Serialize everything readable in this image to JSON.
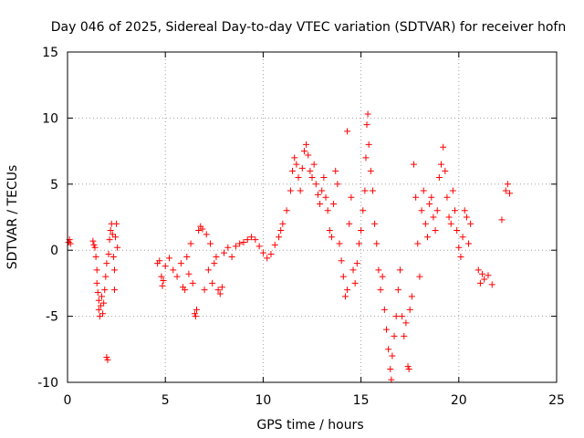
{
  "chart_data": {
    "type": "scatter",
    "title": "Day 046 of 2025, Sidereal Day-to-day VTEC variation (SDTVAR) for receiver hofn",
    "xlabel": "GPS time / hours",
    "ylabel": "SDTVAR / TECUs",
    "xlim": [
      0,
      25
    ],
    "ylim": [
      -10,
      15
    ],
    "xticks": [
      0,
      5,
      10,
      15,
      20,
      25
    ],
    "yticks": [
      -10,
      -5,
      0,
      5,
      10,
      15
    ],
    "grid": true,
    "marker": "+",
    "color": "#ff0000",
    "series": [
      {
        "name": "SDTVAR",
        "points": [
          [
            0.05,
            0.6
          ],
          [
            0.1,
            0.8
          ],
          [
            0.15,
            0.5
          ],
          [
            1.3,
            0.7
          ],
          [
            1.35,
            0.4
          ],
          [
            1.4,
            0.2
          ],
          [
            1.45,
            -0.5
          ],
          [
            1.5,
            -1.5
          ],
          [
            1.5,
            -2.5
          ],
          [
            1.55,
            -3.2
          ],
          [
            1.6,
            -3.8
          ],
          [
            1.6,
            -4.5
          ],
          [
            1.65,
            -5.0
          ],
          [
            1.7,
            -4.2
          ],
          [
            1.75,
            -3.5
          ],
          [
            1.8,
            -4.8
          ],
          [
            1.85,
            -4.0
          ],
          [
            1.9,
            -3.0
          ],
          [
            1.95,
            -2.0
          ],
          [
            2.0,
            -1.0
          ],
          [
            2.0,
            -8.1
          ],
          [
            2.05,
            -8.3
          ],
          [
            2.1,
            -0.3
          ],
          [
            2.15,
            0.8
          ],
          [
            2.2,
            1.5
          ],
          [
            2.25,
            2.0
          ],
          [
            2.3,
            1.2
          ],
          [
            2.35,
            -0.5
          ],
          [
            2.4,
            -1.5
          ],
          [
            2.4,
            -3.0
          ],
          [
            2.45,
            1.0
          ],
          [
            2.5,
            2.0
          ],
          [
            2.55,
            0.2
          ],
          [
            4.6,
            -1.0
          ],
          [
            4.7,
            -0.8
          ],
          [
            4.8,
            -2.0
          ],
          [
            4.85,
            -2.7
          ],
          [
            4.9,
            -2.3
          ],
          [
            5.0,
            -1.2
          ],
          [
            5.2,
            -0.6
          ],
          [
            5.4,
            -1.5
          ],
          [
            5.6,
            -2.0
          ],
          [
            5.8,
            -1.0
          ],
          [
            5.9,
            -2.8
          ],
          [
            6.0,
            -3.0
          ],
          [
            6.1,
            -0.5
          ],
          [
            6.2,
            -1.8
          ],
          [
            6.3,
            0.5
          ],
          [
            6.4,
            -2.5
          ],
          [
            6.5,
            -4.8
          ],
          [
            6.55,
            -5.0
          ],
          [
            6.6,
            -4.5
          ],
          [
            6.7,
            1.5
          ],
          [
            6.8,
            1.8
          ],
          [
            6.9,
            1.6
          ],
          [
            7.0,
            -3.0
          ],
          [
            7.1,
            1.2
          ],
          [
            7.2,
            -1.5
          ],
          [
            7.3,
            0.5
          ],
          [
            7.4,
            -2.5
          ],
          [
            7.5,
            -1.0
          ],
          [
            7.6,
            -0.5
          ],
          [
            7.7,
            -3.0
          ],
          [
            7.8,
            -3.3
          ],
          [
            7.9,
            -2.8
          ],
          [
            8.0,
            -0.2
          ],
          [
            8.2,
            0.2
          ],
          [
            8.4,
            -0.5
          ],
          [
            8.6,
            0.3
          ],
          [
            8.8,
            0.5
          ],
          [
            9.0,
            0.6
          ],
          [
            9.2,
            0.8
          ],
          [
            9.4,
            1.0
          ],
          [
            9.6,
            0.8
          ],
          [
            9.8,
            0.3
          ],
          [
            10.0,
            -0.2
          ],
          [
            10.2,
            -0.6
          ],
          [
            10.4,
            -0.3
          ],
          [
            10.6,
            0.4
          ],
          [
            10.8,
            1.0
          ],
          [
            10.9,
            1.5
          ],
          [
            11.0,
            2.0
          ],
          [
            11.2,
            3.0
          ],
          [
            11.4,
            4.5
          ],
          [
            11.5,
            6.0
          ],
          [
            11.6,
            7.0
          ],
          [
            11.7,
            6.5
          ],
          [
            11.8,
            5.5
          ],
          [
            11.9,
            4.5
          ],
          [
            12.0,
            6.2
          ],
          [
            12.1,
            7.5
          ],
          [
            12.2,
            8.0
          ],
          [
            12.3,
            7.2
          ],
          [
            12.4,
            6.0
          ],
          [
            12.5,
            5.5
          ],
          [
            12.6,
            6.5
          ],
          [
            12.7,
            5.0
          ],
          [
            12.8,
            4.2
          ],
          [
            12.9,
            3.5
          ],
          [
            13.0,
            4.5
          ],
          [
            13.1,
            5.5
          ],
          [
            13.2,
            4.0
          ],
          [
            13.3,
            3.0
          ],
          [
            13.4,
            1.5
          ],
          [
            13.5,
            1.0
          ],
          [
            13.6,
            3.5
          ],
          [
            13.7,
            6.0
          ],
          [
            13.8,
            5.0
          ],
          [
            13.9,
            0.5
          ],
          [
            14.0,
            -0.8
          ],
          [
            14.1,
            -2.0
          ],
          [
            14.2,
            -3.5
          ],
          [
            14.3,
            -3.0
          ],
          [
            14.3,
            9.0
          ],
          [
            14.4,
            2.0
          ],
          [
            14.5,
            4.0
          ],
          [
            14.6,
            -1.5
          ],
          [
            14.7,
            -2.5
          ],
          [
            14.8,
            -1.0
          ],
          [
            14.9,
            0.5
          ],
          [
            15.0,
            1.5
          ],
          [
            15.1,
            3.0
          ],
          [
            15.2,
            4.5
          ],
          [
            15.25,
            7.0
          ],
          [
            15.3,
            9.5
          ],
          [
            15.35,
            10.3
          ],
          [
            15.4,
            8.0
          ],
          [
            15.5,
            6.0
          ],
          [
            15.6,
            4.5
          ],
          [
            15.7,
            2.0
          ],
          [
            15.8,
            0.5
          ],
          [
            15.9,
            -1.5
          ],
          [
            16.0,
            -3.0
          ],
          [
            16.1,
            -2.0
          ],
          [
            16.2,
            -4.5
          ],
          [
            16.3,
            -6.0
          ],
          [
            16.4,
            -7.5
          ],
          [
            16.5,
            -9.0
          ],
          [
            16.55,
            -9.8
          ],
          [
            16.6,
            -8.0
          ],
          [
            16.7,
            -6.5
          ],
          [
            16.8,
            -5.0
          ],
          [
            16.9,
            -3.0
          ],
          [
            17.0,
            -1.5
          ],
          [
            17.1,
            -5.0
          ],
          [
            17.2,
            -6.5
          ],
          [
            17.3,
            -5.5
          ],
          [
            17.4,
            -8.8
          ],
          [
            17.45,
            -9.0
          ],
          [
            17.5,
            -4.5
          ],
          [
            17.6,
            -3.5
          ],
          [
            17.7,
            6.5
          ],
          [
            17.8,
            4.0
          ],
          [
            17.9,
            0.5
          ],
          [
            18.0,
            -2.0
          ],
          [
            18.1,
            3.0
          ],
          [
            18.2,
            4.5
          ],
          [
            18.3,
            2.0
          ],
          [
            18.4,
            1.0
          ],
          [
            18.5,
            3.5
          ],
          [
            18.6,
            4.0
          ],
          [
            18.7,
            2.5
          ],
          [
            18.8,
            1.5
          ],
          [
            18.9,
            3.0
          ],
          [
            19.0,
            5.5
          ],
          [
            19.1,
            6.5
          ],
          [
            19.2,
            7.8
          ],
          [
            19.3,
            6.0
          ],
          [
            19.4,
            4.0
          ],
          [
            19.5,
            2.5
          ],
          [
            19.6,
            2.0
          ],
          [
            19.7,
            4.5
          ],
          [
            19.8,
            3.0
          ],
          [
            19.9,
            1.5
          ],
          [
            20.0,
            0.2
          ],
          [
            20.1,
            -0.5
          ],
          [
            20.2,
            1.0
          ],
          [
            20.3,
            3.0
          ],
          [
            20.4,
            2.5
          ],
          [
            20.5,
            0.5
          ],
          [
            20.6,
            2.0
          ],
          [
            21.0,
            -1.5
          ],
          [
            21.1,
            -2.5
          ],
          [
            21.2,
            -1.8
          ],
          [
            21.3,
            -2.2
          ],
          [
            21.5,
            -1.9
          ],
          [
            21.7,
            -2.6
          ],
          [
            22.2,
            2.3
          ],
          [
            22.4,
            4.5
          ],
          [
            22.5,
            5.0
          ],
          [
            22.6,
            4.3
          ]
        ]
      }
    ]
  }
}
